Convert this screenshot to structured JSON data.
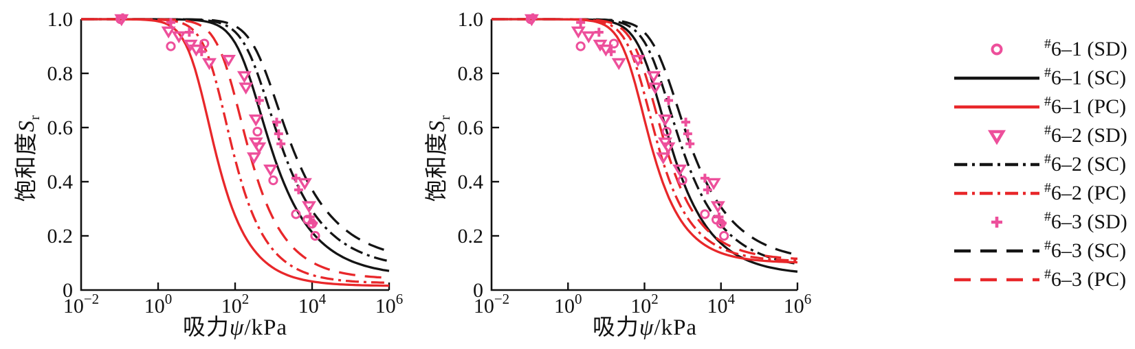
{
  "colors": {
    "black": "#141414",
    "red": "#e8272a",
    "pink": "#ed4f9b",
    "axis": "#111111"
  },
  "axes": {
    "x_label_cn": "吸力",
    "x_label_sym": "ψ",
    "x_label_unit": "/kPa",
    "y_label_cn": "饱和度",
    "y_label_sym": "S",
    "y_label_sub": "r",
    "x_tick_base": "10",
    "x_tick_exponents": [
      "−2",
      "0",
      "2",
      "4",
      "6"
    ],
    "y_tick_labels": [
      "1.0",
      "0.8",
      "0.6",
      "0.4",
      "0.2",
      "0"
    ],
    "y_tick_values": [
      1.0,
      0.8,
      0.6,
      0.4,
      0.2,
      0
    ]
  },
  "legend": {
    "items": [
      {
        "symbol": "marker",
        "marker": "circle",
        "color": "pink",
        "hash": "#",
        "label": "6–1 (SD)"
      },
      {
        "symbol": "line",
        "dash": "solid",
        "color": "black",
        "hash": "#",
        "label": "6–1 (SC)"
      },
      {
        "symbol": "line",
        "dash": "solid",
        "color": "red",
        "hash": "#",
        "label": "6–1 (PC)"
      },
      {
        "symbol": "marker",
        "marker": "triangle-down",
        "color": "pink",
        "hash": "#",
        "label": "6–2 (SD)"
      },
      {
        "symbol": "line",
        "dash": "dashdot",
        "color": "black",
        "hash": "#",
        "label": "6–2 (SC)"
      },
      {
        "symbol": "line",
        "dash": "dashdot",
        "color": "red",
        "hash": "#",
        "label": "6–2 (PC)"
      },
      {
        "symbol": "marker",
        "marker": "plus",
        "color": "pink",
        "hash": "#",
        "label": "6–3 (SD)"
      },
      {
        "symbol": "line",
        "dash": "dash",
        "color": "black",
        "hash": "#",
        "label": "6–3 (SC)"
      },
      {
        "symbol": "line",
        "dash": "dash",
        "color": "red",
        "hash": "#",
        "label": "6–3 (PC)"
      }
    ]
  },
  "chart_data": [
    {
      "panel": "left",
      "type": "line",
      "xscale": "log10",
      "xlabel": "吸力ψ/kPa",
      "ylabel": "饱和度Sr",
      "xlim_log10": [
        -2,
        6
      ],
      "ylim": [
        0,
        1
      ],
      "grid": false,
      "curves": [
        {
          "name": "#6–1 (SC)",
          "color": "black",
          "dash": "solid",
          "model": "van-Genuchten",
          "vg": {
            "a_kPa": 200,
            "n": 1.45,
            "s_res": 0.05
          }
        },
        {
          "name": "#6–2 (SC)",
          "color": "black",
          "dash": "dashdot",
          "model": "van-Genuchten",
          "vg": {
            "a_kPa": 320,
            "n": 1.42,
            "s_res": 0.075
          }
        },
        {
          "name": "#6–3 (SC)",
          "color": "black",
          "dash": "dash",
          "model": "van-Genuchten",
          "vg": {
            "a_kPa": 500,
            "n": 1.4,
            "s_res": 0.1
          }
        },
        {
          "name": "#6–1 (PC)",
          "color": "red",
          "dash": "solid",
          "model": "van-Genuchten",
          "vg": {
            "a_kPa": 11,
            "n": 1.6,
            "s_res": 0.015
          }
        },
        {
          "name": "#6–2 (PC)",
          "color": "red",
          "dash": "dashdot",
          "model": "van-Genuchten",
          "vg": {
            "a_kPa": 31,
            "n": 1.6,
            "s_res": 0.025
          }
        },
        {
          "name": "#6–3 (PC)",
          "color": "red",
          "dash": "dash",
          "model": "van-Genuchten",
          "vg": {
            "a_kPa": 70,
            "n": 1.55,
            "s_res": 0.04
          }
        }
      ],
      "scatter": [
        {
          "name": "#6–1 (SD)",
          "marker": "circle",
          "color": "pink",
          "points_log10x_y": [
            [
              -0.98,
              1.0
            ],
            [
              0.33,
              0.9
            ],
            [
              1.2,
              0.91
            ],
            [
              2.58,
              0.585
            ],
            [
              2.99,
              0.405
            ],
            [
              3.58,
              0.28
            ],
            [
              3.88,
              0.26
            ],
            [
              4.0,
              0.245
            ],
            [
              4.08,
              0.2
            ]
          ]
        },
        {
          "name": "#6–2 (SD)",
          "marker": "triangle-down",
          "color": "pink",
          "points_log10x_y": [
            [
              -0.95,
              1.0
            ],
            [
              0.27,
              0.955
            ],
            [
              0.54,
              0.937
            ],
            [
              0.84,
              0.906
            ],
            [
              0.99,
              0.888
            ],
            [
              1.33,
              0.838
            ],
            [
              1.83,
              0.85
            ],
            [
              2.24,
              0.79
            ],
            [
              2.28,
              0.748
            ],
            [
              2.49,
              0.49
            ],
            [
              2.54,
              0.63
            ],
            [
              2.54,
              0.545
            ],
            [
              2.62,
              0.527
            ],
            [
              2.92,
              0.445
            ],
            [
              3.81,
              0.395
            ],
            [
              3.92,
              0.31
            ]
          ]
        },
        {
          "name": "#6–3 (SD)",
          "marker": "plus",
          "color": "pink",
          "points_log10x_y": [
            [
              -0.92,
              1.005
            ],
            [
              0.33,
              0.988
            ],
            [
              0.81,
              0.952
            ],
            [
              1.13,
              0.88
            ],
            [
              2.63,
              0.7
            ],
            [
              3.08,
              0.62
            ],
            [
              3.13,
              0.577
            ],
            [
              3.19,
              0.54
            ],
            [
              3.58,
              0.413
            ],
            [
              3.65,
              0.37
            ],
            [
              3.95,
              0.27
            ],
            [
              4.03,
              0.247
            ]
          ]
        }
      ]
    },
    {
      "panel": "right",
      "type": "line",
      "xscale": "log10",
      "xlabel": "吸力ψ/kPa",
      "ylabel": "饱和度Sr",
      "xlim_log10": [
        -2,
        6
      ],
      "ylim": [
        0,
        1
      ],
      "grid": false,
      "curves": [
        {
          "name": "#6–1 (SC)",
          "color": "black",
          "dash": "solid",
          "model": "van-Genuchten",
          "vg": {
            "a_kPa": 130,
            "n": 1.48,
            "s_res": 0.055
          }
        },
        {
          "name": "#6–2 (SC)",
          "color": "black",
          "dash": "dashdot",
          "model": "van-Genuchten",
          "vg": {
            "a_kPa": 200,
            "n": 1.44,
            "s_res": 0.075
          }
        },
        {
          "name": "#6–3 (SC)",
          "color": "black",
          "dash": "dash",
          "model": "van-Genuchten",
          "vg": {
            "a_kPa": 300,
            "n": 1.42,
            "s_res": 0.1
          }
        },
        {
          "name": "#6–1 (PC)",
          "color": "red",
          "dash": "solid",
          "model": "van-Genuchten",
          "vg": {
            "a_kPa": 49,
            "n": 1.6,
            "s_res": 0.1
          }
        },
        {
          "name": "#6–2 (PC)",
          "color": "red",
          "dash": "dashdot",
          "model": "van-Genuchten",
          "vg": {
            "a_kPa": 70,
            "n": 1.58,
            "s_res": 0.105
          }
        },
        {
          "name": "#6–3 (PC)",
          "color": "red",
          "dash": "dash",
          "model": "van-Genuchten",
          "vg": {
            "a_kPa": 100,
            "n": 1.55,
            "s_res": 0.11
          }
        }
      ],
      "scatter": [
        {
          "name": "#6–1 (SD)",
          "marker": "circle",
          "color": "pink",
          "points_log10x_y": [
            [
              -0.98,
              1.0
            ],
            [
              0.33,
              0.9
            ],
            [
              1.2,
              0.91
            ],
            [
              2.58,
              0.585
            ],
            [
              2.99,
              0.405
            ],
            [
              3.58,
              0.28
            ],
            [
              3.88,
              0.26
            ],
            [
              4.0,
              0.245
            ],
            [
              4.08,
              0.2
            ]
          ]
        },
        {
          "name": "#6–2 (SD)",
          "marker": "triangle-down",
          "color": "pink",
          "points_log10x_y": [
            [
              -0.95,
              1.0
            ],
            [
              0.27,
              0.955
            ],
            [
              0.54,
              0.937
            ],
            [
              0.84,
              0.906
            ],
            [
              0.99,
              0.888
            ],
            [
              1.33,
              0.838
            ],
            [
              1.83,
              0.85
            ],
            [
              2.24,
              0.79
            ],
            [
              2.28,
              0.748
            ],
            [
              2.49,
              0.49
            ],
            [
              2.54,
              0.63
            ],
            [
              2.54,
              0.545
            ],
            [
              2.62,
              0.527
            ],
            [
              2.92,
              0.445
            ],
            [
              3.81,
              0.395
            ],
            [
              3.92,
              0.31
            ]
          ]
        },
        {
          "name": "#6–3 (SD)",
          "marker": "plus",
          "color": "pink",
          "points_log10x_y": [
            [
              -0.92,
              1.005
            ],
            [
              0.33,
              0.988
            ],
            [
              0.81,
              0.952
            ],
            [
              1.13,
              0.88
            ],
            [
              2.63,
              0.7
            ],
            [
              3.08,
              0.62
            ],
            [
              3.13,
              0.577
            ],
            [
              3.19,
              0.54
            ],
            [
              3.58,
              0.413
            ],
            [
              3.65,
              0.37
            ],
            [
              3.95,
              0.27
            ],
            [
              4.03,
              0.247
            ]
          ]
        }
      ]
    }
  ]
}
